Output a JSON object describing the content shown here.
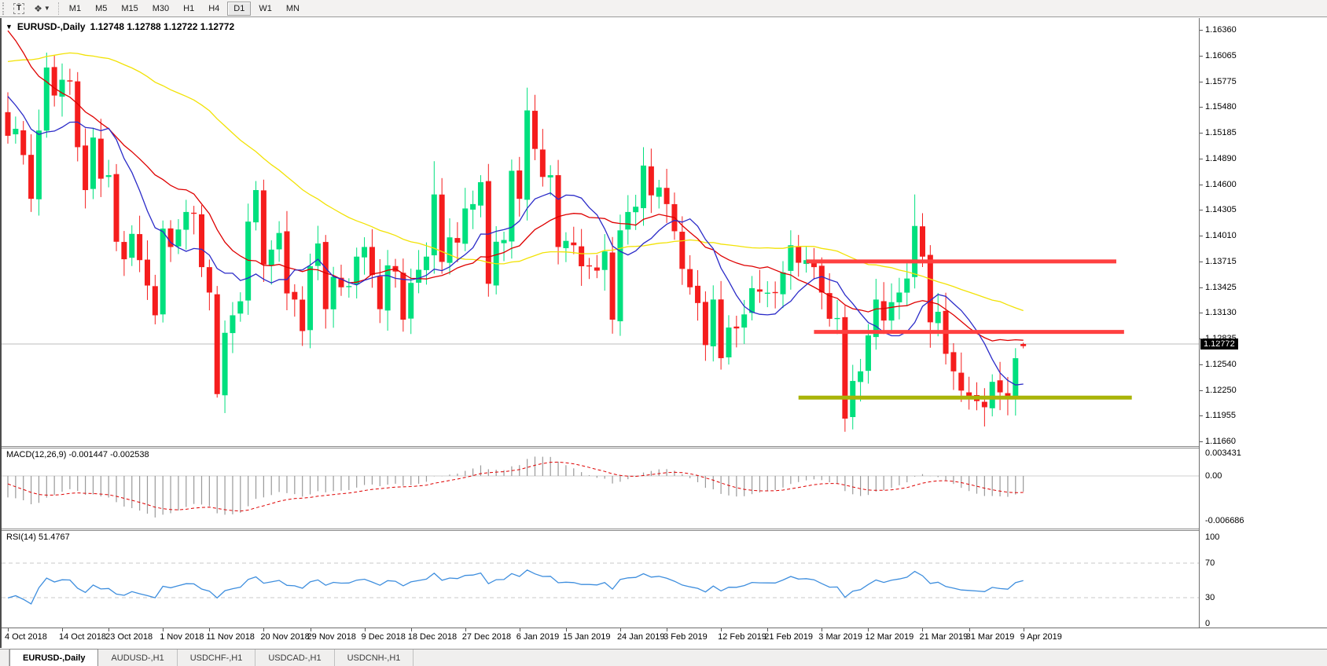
{
  "toolbar": {
    "text_tool_label": "T",
    "cycle_tool_glyph": "❖",
    "timeframes": [
      "M1",
      "M5",
      "M15",
      "M30",
      "H1",
      "H4",
      "D1",
      "W1",
      "MN"
    ],
    "active_timeframe": "D1"
  },
  "chart": {
    "title": "EURUSD-,Daily",
    "ohlc_readout": "1.12748 1.12788 1.12722 1.12772",
    "current_price": "1.12772"
  },
  "colors": {
    "bull": "#00E07E",
    "bear": "#F51D1D",
    "ma_blue": "#2B2BC8",
    "ma_red": "#DE0000",
    "ma_yellow": "#F2E205",
    "level_red": "#FF4040",
    "level_olive": "#A9B408",
    "macd_hist": "#9A9A9A",
    "macd_signal": "#DE0000",
    "rsi_line": "#3E8EDE",
    "price_line": "#BCBCBC",
    "grid_dash": "#C9C9C9"
  },
  "chart_data": {
    "type": "candlestick",
    "symbol": "EURUSD-",
    "timeframe": "Daily",
    "ylim": [
      1.1166,
      1.1636
    ],
    "y_ticks": [
      "1.16360",
      "1.16065",
      "1.15775",
      "1.15480",
      "1.15185",
      "1.14890",
      "1.14600",
      "1.14305",
      "1.14010",
      "1.13715",
      "1.13425",
      "1.13130",
      "1.12835",
      "1.12540",
      "1.12250",
      "1.11955",
      "1.11660"
    ],
    "x_labels": [
      "4 Oct 2018",
      "14 Oct 2018",
      "23 Oct 2018",
      "1 Nov 2018",
      "11 Nov 2018",
      "20 Nov 2018",
      "29 Nov 2018",
      "9 Dec 2018",
      "18 Dec 2018",
      "27 Dec 2018",
      "6 Jan 2019",
      "15 Jan 2019",
      "24 Jan 2019",
      "3 Feb 2019",
      "12 Feb 2019",
      "21 Feb 2019",
      "3 Mar 2019",
      "12 Mar 2019",
      "21 Mar 2019",
      "31 Mar 2019",
      "9 Apr 2019"
    ],
    "x_label_indices": [
      0,
      7,
      13,
      20,
      26,
      33,
      39,
      46,
      52,
      59,
      66,
      72,
      79,
      85,
      92,
      98,
      105,
      111,
      118,
      124,
      131
    ],
    "open_first": 1.1542,
    "closes": [
      1.1515,
      1.1523,
      1.1493,
      1.1443,
      1.1521,
      1.1593,
      1.1561,
      1.1579,
      1.1577,
      1.1502,
      1.1453,
      1.1513,
      1.1466,
      1.147,
      1.1394,
      1.1374,
      1.1403,
      1.1373,
      1.1344,
      1.131,
      1.1409,
      1.1388,
      1.1408,
      1.1428,
      1.1426,
      1.1365,
      1.1336,
      1.122,
      1.129,
      1.131,
      1.1326,
      1.1417,
      1.1453,
      1.1368,
      1.1385,
      1.1404,
      1.1335,
      1.1328,
      1.1292,
      1.1366,
      1.1392,
      1.1317,
      1.1354,
      1.1342,
      1.1344,
      1.1377,
      1.1388,
      1.1356,
      1.1317,
      1.1367,
      1.136,
      1.1305,
      1.1347,
      1.1362,
      1.1377,
      1.1448,
      1.1371,
      1.1399,
      1.1393,
      1.1432,
      1.1437,
      1.1462,
      1.1346,
      1.1394,
      1.1396,
      1.1475,
      1.1443,
      1.1544,
      1.15,
      1.1468,
      1.147,
      1.1388,
      1.1395,
      1.139,
      1.1366,
      1.1366,
      1.1361,
      1.1383,
      1.1305,
      1.1407,
      1.1428,
      1.1434,
      1.1481,
      1.1447,
      1.1456,
      1.1437,
      1.1406,
      1.1363,
      1.1342,
      1.1324,
      1.1276,
      1.1328,
      1.1261,
      1.1296,
      1.1295,
      1.1311,
      1.1341,
      1.1337,
      1.1336,
      1.1335,
      1.1359,
      1.139,
      1.137,
      1.1373,
      1.1365,
      1.1336,
      1.1306,
      1.1307,
      1.1192,
      1.1235,
      1.1246,
      1.1287,
      1.1328,
      1.1304,
      1.1325,
      1.1336,
      1.1352,
      1.1412,
      1.1377,
      1.1302,
      1.1314,
      1.1266,
      1.1246,
      1.1224,
      1.1218,
      1.1212,
      1.1205,
      1.1234,
      1.1222,
      1.1216,
      1.1261,
      1.12772
    ],
    "wick_overrides": {
      "5": {
        "h": 1.161
      },
      "27": {
        "l": 1.1216
      },
      "55": {
        "h": 1.1486
      },
      "67": {
        "h": 1.157
      },
      "78": {
        "l": 1.1289
      },
      "82": {
        "h": 1.1502
      },
      "90": {
        "l": 1.1258
      },
      "92": {
        "l": 1.1248
      },
      "108": {
        "l": 1.1177
      },
      "117": {
        "h": 1.1448
      },
      "119": {
        "l": 1.1273
      },
      "123": {
        "l": 1.1211
      },
      "126": {
        "l": 1.1183
      }
    },
    "last_candle": {
      "open": 1.12748,
      "high": 1.12788,
      "low": 1.12722,
      "close": 1.12772,
      "render": "bear"
    },
    "ma_warmup_closes_est": [
      1.148,
      1.1465,
      1.145,
      1.144,
      1.1455,
      1.147,
      1.149,
      1.1505,
      1.152,
      1.1535,
      1.155,
      1.1565,
      1.1545,
      1.153,
      1.1552,
      1.157,
      1.1585,
      1.16,
      1.1615,
      1.163,
      1.1605,
      1.162,
      1.16,
      1.1615,
      1.1632,
      1.165,
      1.1665,
      1.1682,
      1.17,
      1.1715,
      1.173,
      1.175,
      1.177,
      1.176,
      1.1742,
      1.172,
      1.1705,
      1.169,
      1.1672,
      1.1655,
      1.1638,
      1.1625,
      1.161,
      1.1598,
      1.1582,
      1.1565,
      1.155,
      1.1535,
      1.152,
      1.15
    ],
    "moving_average_periods": {
      "blue_fast": 10,
      "red_mid": 20,
      "yellow_slow": 50
    },
    "levels": [
      {
        "name": "resistance-upper",
        "price": 1.13715,
        "start_index": 103,
        "end_index": 143,
        "color_key": "level_red",
        "width": 5
      },
      {
        "name": "resistance-lower",
        "price": 1.1291,
        "start_index": 104,
        "end_index": 144,
        "color_key": "level_red",
        "width": 5
      },
      {
        "name": "support",
        "price": 1.1216,
        "start_index": 102,
        "end_index": 145,
        "color_key": "level_olive",
        "width": 5
      }
    ],
    "indicators": {
      "macd": {
        "label": "MACD(12,26,9)",
        "values_text": "-0.001447 -0.002538",
        "main": -0.001447,
        "signal": -0.002538,
        "axis_ticks": [
          "0.003431",
          "0.00",
          "-0.006686"
        ],
        "axis_values": [
          0.003431,
          0,
          -0.006686
        ]
      },
      "rsi": {
        "label": "RSI(14)",
        "value_text": "51.4767",
        "value": 51.4767,
        "axis_ticks": [
          "100",
          "70",
          "30",
          "0"
        ],
        "axis_values": [
          100,
          70,
          30,
          0
        ],
        "level_lines": [
          70,
          30
        ]
      }
    }
  },
  "tabs": [
    {
      "label": "EURUSD-,Daily",
      "active": true
    },
    {
      "label": "AUDUSD-,H1",
      "active": false
    },
    {
      "label": "USDCHF-,H1",
      "active": false
    },
    {
      "label": "USDCAD-,H1",
      "active": false
    },
    {
      "label": "USDCNH-,H1",
      "active": false
    }
  ]
}
